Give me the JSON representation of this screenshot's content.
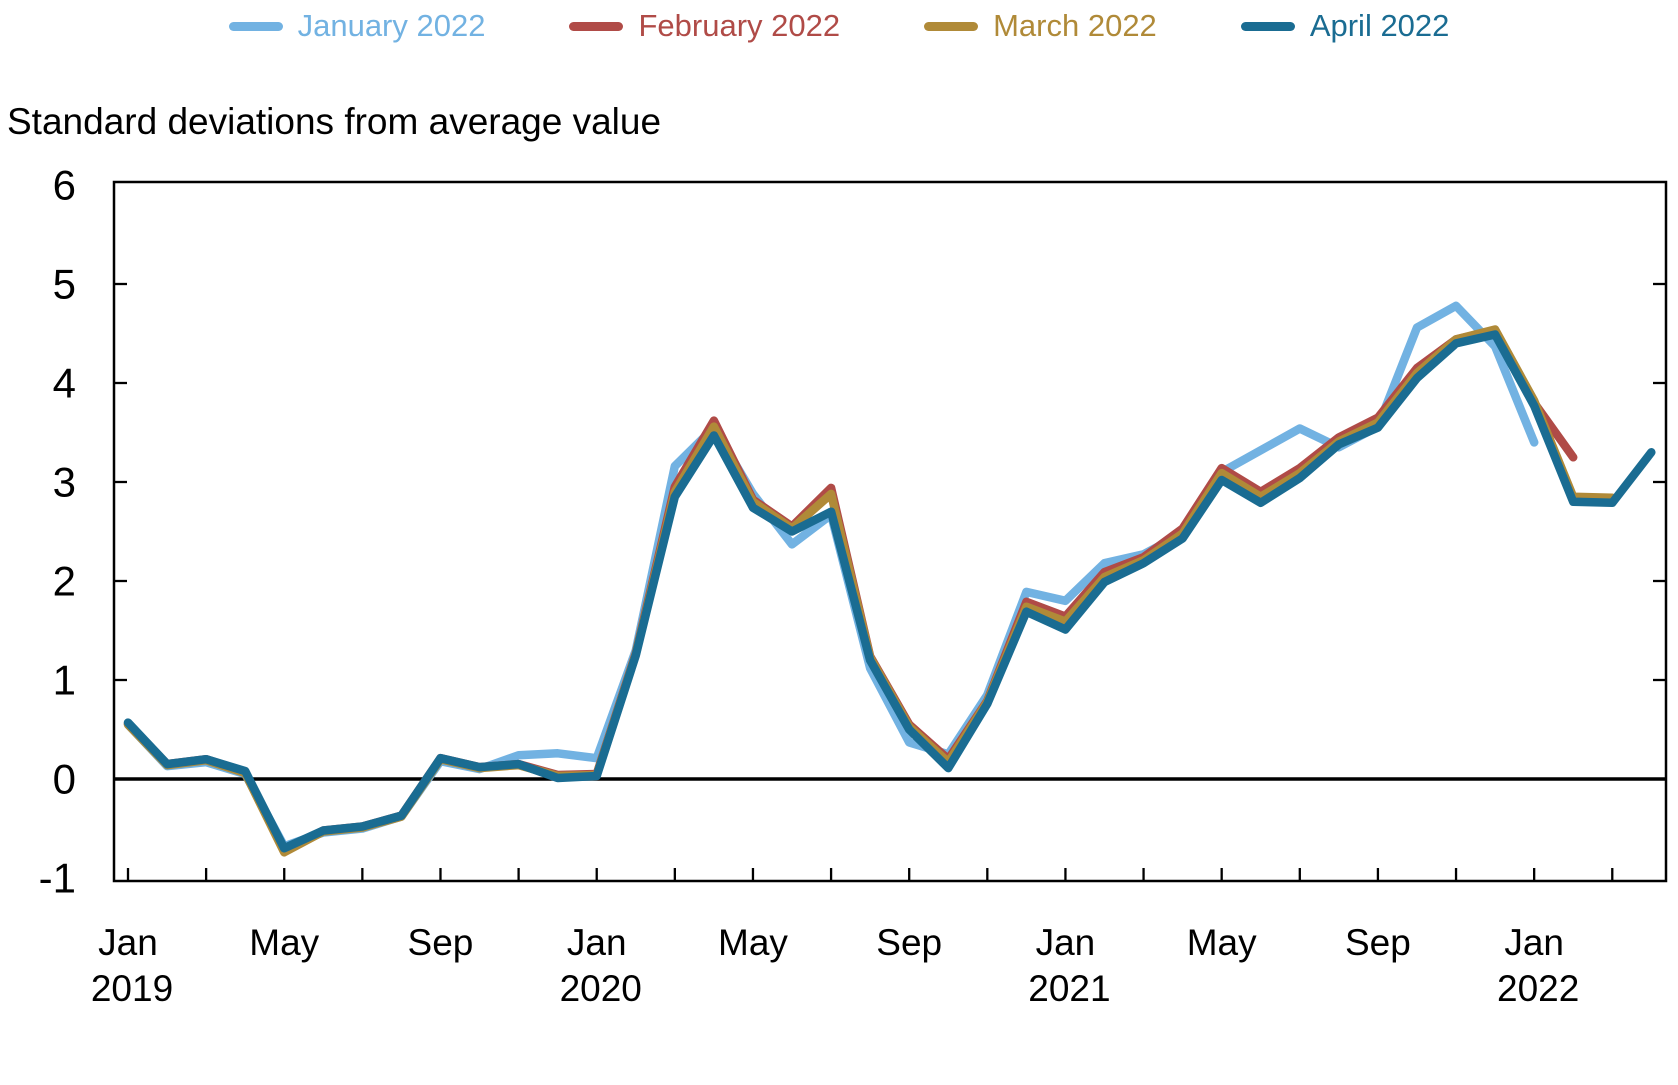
{
  "legend": {
    "items": [
      {
        "label": "January 2022",
        "color": "#72B2E2"
      },
      {
        "label": "February 2022",
        "color": "#B04B47"
      },
      {
        "label": "March 2022",
        "color": "#B08A38"
      },
      {
        "label": "April 2022",
        "color": "#1A6C92"
      }
    ]
  },
  "title": "Standard deviations from average value",
  "chart_data": {
    "type": "line",
    "title": "Standard deviations from average value",
    "ylabel": "Standard deviations from average value",
    "x_frequency": "monthly",
    "x_start": "Jan 2019",
    "x_end": "Apr 2022",
    "ylim": [
      -1.02,
      6.03
    ],
    "yticks": [
      6,
      5,
      4,
      3,
      2,
      1,
      0,
      -1
    ],
    "side_tick_values": [
      5,
      4,
      3,
      2,
      1
    ],
    "zero_line": true,
    "grid": false,
    "legend_position": "top",
    "xtick_every_months": 2,
    "xtick_labels": [
      {
        "m": 0,
        "month": "Jan",
        "year": "2019"
      },
      {
        "m": 4,
        "month": "May",
        "year": ""
      },
      {
        "m": 8,
        "month": "Sep",
        "year": ""
      },
      {
        "m": 12,
        "month": "Jan",
        "year": "2020"
      },
      {
        "m": 16,
        "month": "May",
        "year": ""
      },
      {
        "m": 20,
        "month": "Sep",
        "year": ""
      },
      {
        "m": 24,
        "month": "Jan",
        "year": "2021"
      },
      {
        "m": 28,
        "month": "May",
        "year": ""
      },
      {
        "m": 32,
        "month": "Sep",
        "year": ""
      },
      {
        "m": 36,
        "month": "Jan",
        "year": "2022"
      }
    ],
    "series": [
      {
        "name": "January 2022",
        "color": "#72B2E2",
        "last_month": "Jan 2022",
        "values": [
          0.55,
          0.13,
          0.17,
          0.05,
          -0.68,
          -0.54,
          -0.5,
          -0.38,
          0.18,
          0.1,
          0.24,
          0.26,
          0.21,
          1.3,
          3.16,
          3.55,
          2.88,
          2.37,
          2.67,
          1.12,
          0.37,
          0.25,
          0.85,
          1.89,
          1.8,
          2.18,
          2.27,
          2.48,
          3.1,
          3.32,
          3.54,
          3.35,
          3.56,
          4.56,
          4.78,
          4.37,
          3.4
        ]
      },
      {
        "name": "February 2022",
        "color": "#B04B47",
        "last_month": "Feb 2022",
        "values": [
          0.56,
          0.15,
          0.2,
          0.07,
          -0.72,
          -0.52,
          -0.48,
          -0.37,
          0.21,
          0.12,
          0.15,
          0.04,
          0.05,
          1.27,
          2.95,
          3.62,
          2.82,
          2.55,
          2.94,
          1.24,
          0.55,
          0.2,
          0.79,
          1.79,
          1.64,
          2.09,
          2.24,
          2.53,
          3.14,
          2.9,
          3.14,
          3.45,
          3.65,
          4.15,
          4.44,
          4.53,
          3.8,
          3.25
        ]
      },
      {
        "name": "March 2022",
        "color": "#B08A38",
        "last_month": "Mar 2022",
        "values": [
          0.55,
          0.14,
          0.19,
          0.06,
          -0.74,
          -0.53,
          -0.49,
          -0.38,
          0.2,
          0.11,
          0.14,
          0.03,
          0.04,
          1.26,
          2.9,
          3.56,
          2.8,
          2.53,
          2.88,
          1.23,
          0.53,
          0.17,
          0.78,
          1.74,
          1.59,
          2.04,
          2.21,
          2.48,
          3.09,
          2.85,
          3.09,
          3.41,
          3.6,
          4.1,
          4.44,
          4.54,
          3.82,
          2.85,
          2.84
        ]
      },
      {
        "name": "April 2022",
        "color": "#1A6C92",
        "last_month": "Apr 2022",
        "values": [
          0.57,
          0.15,
          0.2,
          0.08,
          -0.7,
          -0.52,
          -0.48,
          -0.37,
          0.21,
          0.12,
          0.15,
          0.01,
          0.03,
          1.25,
          2.85,
          3.47,
          2.74,
          2.5,
          2.7,
          1.2,
          0.5,
          0.11,
          0.76,
          1.69,
          1.51,
          1.99,
          2.18,
          2.43,
          3.02,
          2.79,
          3.04,
          3.38,
          3.55,
          4.05,
          4.4,
          4.49,
          3.77,
          2.8,
          2.79,
          3.3
        ]
      }
    ]
  }
}
